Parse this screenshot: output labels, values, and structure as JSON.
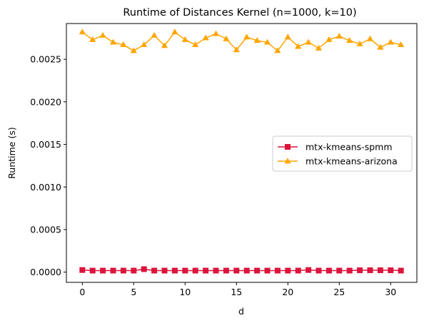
{
  "chart_data": {
    "type": "line",
    "title": "Runtime of Distances Kernel (n=1000, k=10)",
    "xlabel": "d",
    "ylabel": "Runtime (s)",
    "xlim": [
      -1.55,
      32.55
    ],
    "ylim": [
      -0.00012,
      0.00292
    ],
    "xticks": [
      0,
      5,
      10,
      15,
      20,
      25,
      30
    ],
    "xtick_labels": [
      "0",
      "5",
      "10",
      "15",
      "20",
      "25",
      "30"
    ],
    "yticks": [
      0.0,
      0.0005,
      0.001,
      0.0015,
      0.002,
      0.0025
    ],
    "ytick_labels": [
      "0.0000",
      "0.0005",
      "0.0010",
      "0.0015",
      "0.0020",
      "0.0025"
    ],
    "grid": false,
    "legend_position": "center-right",
    "x": [
      0,
      1,
      2,
      3,
      4,
      5,
      6,
      7,
      8,
      9,
      10,
      11,
      12,
      13,
      14,
      15,
      16,
      17,
      18,
      19,
      20,
      21,
      22,
      23,
      24,
      25,
      26,
      27,
      28,
      29,
      30,
      31
    ],
    "series": [
      {
        "name": "mtx-kmeans-spmm",
        "color": "#dc143c",
        "marker": "square",
        "values": [
          2.5e-05,
          1.8e-05,
          1.8e-05,
          1.8e-05,
          1.8e-05,
          1.8e-05,
          3.5e-05,
          1.8e-05,
          1.8e-05,
          1.8e-05,
          1.8e-05,
          1.8e-05,
          1.8e-05,
          1.8e-05,
          1.8e-05,
          1.8e-05,
          1.8e-05,
          1.8e-05,
          1.8e-05,
          1.8e-05,
          1.8e-05,
          1.8e-05,
          2.5e-05,
          1.8e-05,
          1.8e-05,
          1.8e-05,
          1.8e-05,
          2.2e-05,
          2.2e-05,
          2.2e-05,
          2.2e-05,
          1.8e-05
        ]
      },
      {
        "name": "mtx-kmeans-arizona",
        "color": "#ffa500",
        "marker": "triangle",
        "values": [
          0.00282,
          0.00273,
          0.00278,
          0.0027,
          0.00267,
          0.0026,
          0.00267,
          0.00278,
          0.00266,
          0.00282,
          0.00273,
          0.00267,
          0.00275,
          0.0028,
          0.00274,
          0.00261,
          0.00276,
          0.00272,
          0.0027,
          0.0026,
          0.00276,
          0.00265,
          0.0027,
          0.00263,
          0.00273,
          0.00277,
          0.00272,
          0.00268,
          0.00274,
          0.00264,
          0.0027,
          0.00267
        ]
      }
    ]
  }
}
